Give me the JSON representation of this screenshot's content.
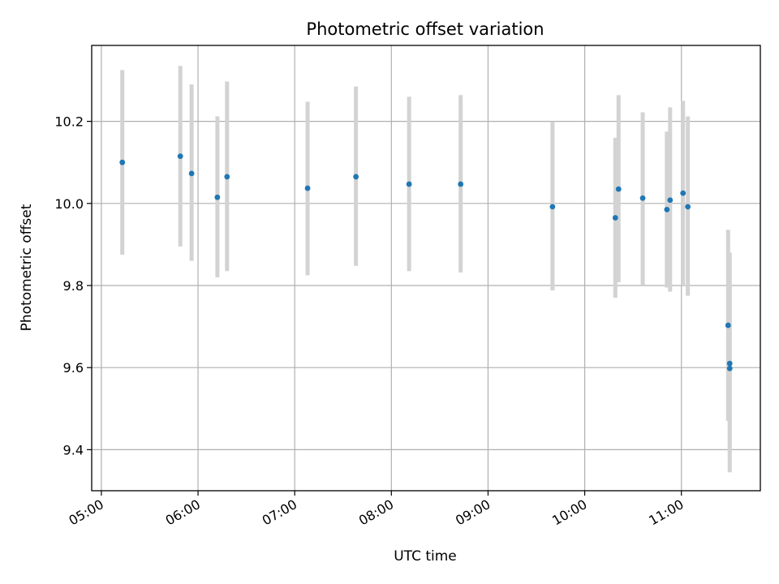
{
  "chart_data": {
    "type": "scatter",
    "title": "Photometric offset variation",
    "xlabel": "UTC time",
    "ylabel": "Photometric offset",
    "x_axis": "time",
    "xlim": [
      "04:54",
      "11:49"
    ],
    "ylim": [
      9.3,
      10.385
    ],
    "x_ticks": [
      "05:00",
      "06:00",
      "07:00",
      "08:00",
      "09:00",
      "10:00",
      "11:00"
    ],
    "y_ticks": [
      9.4,
      9.6,
      9.8,
      10.0,
      10.2
    ],
    "grid": true,
    "legend": "none",
    "point_color": "#1f77b4",
    "errorbar_color": "#d3d3d3",
    "points": [
      {
        "time": "05:13",
        "y": 10.1,
        "ylow": 9.875,
        "yhigh": 10.325
      },
      {
        "time": "05:49",
        "y": 10.115,
        "ylow": 9.895,
        "yhigh": 10.335
      },
      {
        "time": "05:56",
        "y": 10.073,
        "ylow": 9.86,
        "yhigh": 10.29
      },
      {
        "time": "06:12",
        "y": 10.015,
        "ylow": 9.82,
        "yhigh": 10.212
      },
      {
        "time": "06:18",
        "y": 10.065,
        "ylow": 9.835,
        "yhigh": 10.297
      },
      {
        "time": "07:08",
        "y": 10.037,
        "ylow": 9.825,
        "yhigh": 10.248
      },
      {
        "time": "07:38",
        "y": 10.065,
        "ylow": 9.848,
        "yhigh": 10.285
      },
      {
        "time": "08:11",
        "y": 10.047,
        "ylow": 9.835,
        "yhigh": 10.26
      },
      {
        "time": "08:43",
        "y": 10.047,
        "ylow": 9.832,
        "yhigh": 10.264
      },
      {
        "time": "09:40",
        "y": 9.992,
        "ylow": 9.788,
        "yhigh": 10.198
      },
      {
        "time": "10:19",
        "y": 9.965,
        "ylow": 9.77,
        "yhigh": 10.16
      },
      {
        "time": "10:21",
        "y": 10.035,
        "ylow": 9.808,
        "yhigh": 10.264
      },
      {
        "time": "10:36",
        "y": 10.013,
        "ylow": 9.802,
        "yhigh": 10.222
      },
      {
        "time": "10:51",
        "y": 9.985,
        "ylow": 9.795,
        "yhigh": 10.175
      },
      {
        "time": "10:53",
        "y": 10.008,
        "ylow": 9.785,
        "yhigh": 10.234
      },
      {
        "time": "11:01",
        "y": 10.025,
        "ylow": 9.8,
        "yhigh": 10.25
      },
      {
        "time": "11:04",
        "y": 9.992,
        "ylow": 9.775,
        "yhigh": 10.212
      },
      {
        "time": "11:29",
        "y": 9.703,
        "ylow": 9.47,
        "yhigh": 9.936
      },
      {
        "time": "11:30",
        "y": 9.598,
        "ylow": 9.39,
        "yhigh": 9.81
      },
      {
        "time": "11:30",
        "y": 9.61,
        "ylow": 9.345,
        "yhigh": 9.88
      }
    ]
  }
}
